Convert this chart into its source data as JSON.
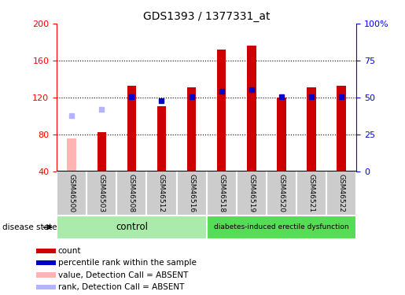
{
  "title": "GDS1393 / 1377331_at",
  "samples": [
    "GSM46500",
    "GSM46503",
    "GSM46508",
    "GSM46512",
    "GSM46516",
    "GSM46518",
    "GSM46519",
    "GSM46520",
    "GSM46521",
    "GSM46522"
  ],
  "count_values": [
    75,
    82,
    133,
    110,
    131,
    172,
    176,
    120,
    131,
    133
  ],
  "count_absent": [
    true,
    false,
    false,
    false,
    false,
    false,
    false,
    false,
    false,
    false
  ],
  "percentile_values": [
    100,
    107,
    121,
    116,
    121,
    127,
    128,
    121,
    121,
    121
  ],
  "percentile_absent": [
    true,
    true,
    false,
    false,
    false,
    false,
    false,
    false,
    false,
    false
  ],
  "ylim": [
    40,
    200
  ],
  "yticks_left": [
    40,
    80,
    120,
    160,
    200
  ],
  "right_tick_labels": [
    "0",
    "25",
    "50",
    "75",
    "100%"
  ],
  "control_label": "control",
  "disease_label": "diabetes-induced erectile dysfunction",
  "group_label": "disease state",
  "bar_color_normal": "#cc0000",
  "bar_color_absent": "#ffb3b3",
  "rank_color_normal": "#0000cc",
  "rank_color_absent": "#b3b3ff",
  "control_bg": "#aaeaaa",
  "disease_bg": "#55dd55",
  "tick_area_bg": "#cccccc",
  "legend_items": [
    "count",
    "percentile rank within the sample",
    "value, Detection Call = ABSENT",
    "rank, Detection Call = ABSENT"
  ],
  "legend_colors": [
    "#cc0000",
    "#0000cc",
    "#ffb3b3",
    "#b3b3ff"
  ]
}
